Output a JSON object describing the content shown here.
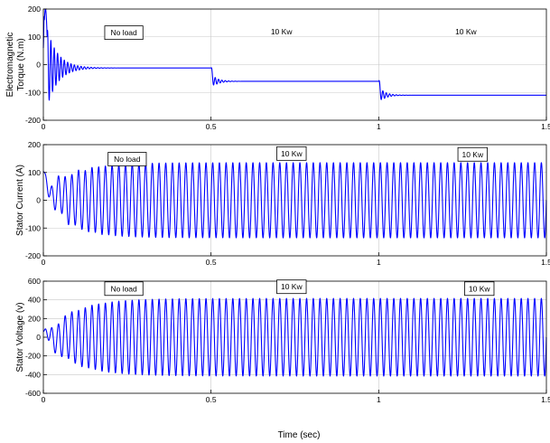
{
  "figure": {
    "xlabel": "Time (sec)"
  },
  "chart_data": [
    {
      "type": "line",
      "quantity": "torque",
      "ylabel_lines": [
        "Electromagnetic",
        "Torque (N.m)"
      ],
      "xlim": [
        0,
        1.5
      ],
      "ylim": [
        -200,
        200
      ],
      "xticks": [
        "0",
        "0.5",
        "1",
        "1.5"
      ],
      "yticks": [
        "-200",
        "-100",
        "0",
        "100",
        "200"
      ],
      "grid": true,
      "annotations": [
        {
          "text": "No load",
          "x": 0.24,
          "y": 115,
          "boxed": true
        },
        {
          "text": "10 Kw",
          "x": 0.71,
          "y": 118,
          "boxed": false
        },
        {
          "text": "10 Kw",
          "x": 1.26,
          "y": 118,
          "boxed": false
        }
      ],
      "series": [
        {
          "color": "#0000ff",
          "segments": [
            {
              "t_start": 0.0,
              "t_end": 0.5,
              "steady_value": -12
            },
            {
              "t_start": 0.5,
              "t_end": 1.0,
              "steady_value": -60
            },
            {
              "t_start": 1.0,
              "t_end": 1.5,
              "steady_value": -110
            }
          ]
        }
      ]
    },
    {
      "type": "line",
      "quantity": "stator_current",
      "ylabel_lines": [
        "Stator Current (A)"
      ],
      "xlim": [
        0,
        1.5
      ],
      "ylim": [
        -200,
        200
      ],
      "xticks": [
        "0",
        "0.5",
        "1",
        "1.5"
      ],
      "yticks": [
        "-200",
        "-100",
        "0",
        "100",
        "200"
      ],
      "grid": true,
      "annotations": [
        {
          "text": "No load",
          "x": 0.25,
          "y": 148,
          "boxed": true
        },
        {
          "text": "10 Kw",
          "x": 0.74,
          "y": 168,
          "boxed": true
        },
        {
          "text": "10 Kw",
          "x": 1.28,
          "y": 165,
          "boxed": true
        }
      ],
      "series": [
        {
          "color": "#0000ff",
          "steady_amplitude": 135,
          "frequency_hz": 50
        }
      ]
    },
    {
      "type": "line",
      "quantity": "stator_voltage",
      "ylabel_lines": [
        "Stator Voltage (v)"
      ],
      "xlim": [
        0,
        1.5
      ],
      "ylim": [
        -600,
        600
      ],
      "xticks": [
        "0",
        "0.5",
        "1",
        "1.5"
      ],
      "yticks": [
        "-600",
        "-400",
        "-200",
        "0",
        "200",
        "400",
        "600"
      ],
      "grid": true,
      "annotations": [
        {
          "text": "No load",
          "x": 0.24,
          "y": 520,
          "boxed": true
        },
        {
          "text": "10 Kw",
          "x": 0.74,
          "y": 540,
          "boxed": true
        },
        {
          "text": "10 Kw",
          "x": 1.3,
          "y": 520,
          "boxed": true
        }
      ],
      "series": [
        {
          "color": "#0000ff",
          "steady_amplitude": 415,
          "frequency_hz": 50
        }
      ]
    }
  ]
}
